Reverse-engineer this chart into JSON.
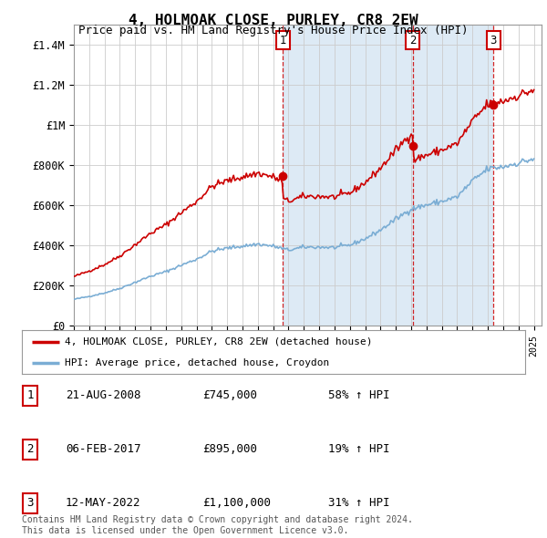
{
  "title": "4, HOLMOAK CLOSE, PURLEY, CR8 2EW",
  "subtitle": "Price paid vs. HM Land Registry's House Price Index (HPI)",
  "ylabel_ticks": [
    "£0",
    "£200K",
    "£400K",
    "£600K",
    "£800K",
    "£1M",
    "£1.2M",
    "£1.4M"
  ],
  "ytick_values": [
    0,
    200000,
    400000,
    600000,
    800000,
    1000000,
    1200000,
    1400000
  ],
  "ylim": [
    0,
    1500000
  ],
  "sale_decimal_years": [
    2008.64,
    2017.09,
    2022.37
  ],
  "sale_prices": [
    745000,
    895000,
    1100000
  ],
  "sale_labels": [
    "1",
    "2",
    "3"
  ],
  "legend_entries": [
    "4, HOLMOAK CLOSE, PURLEY, CR8 2EW (detached house)",
    "HPI: Average price, detached house, Croydon"
  ],
  "table_rows": [
    [
      "1",
      "21-AUG-2008",
      "£745,000",
      "58% ↑ HPI"
    ],
    [
      "2",
      "06-FEB-2017",
      "£895,000",
      "19% ↑ HPI"
    ],
    [
      "3",
      "12-MAY-2022",
      "£1,100,000",
      "31% ↑ HPI"
    ]
  ],
  "footer": "Contains HM Land Registry data © Crown copyright and database right 2024.\nThis data is licensed under the Open Government Licence v3.0.",
  "red_color": "#cc0000",
  "hpi_line_color": "#7aadd4",
  "dashed_line_color": "#cc0000",
  "background_plot_white": "#ffffff",
  "background_plot_blue": "#ddeaf5",
  "grid_color": "#cccccc"
}
